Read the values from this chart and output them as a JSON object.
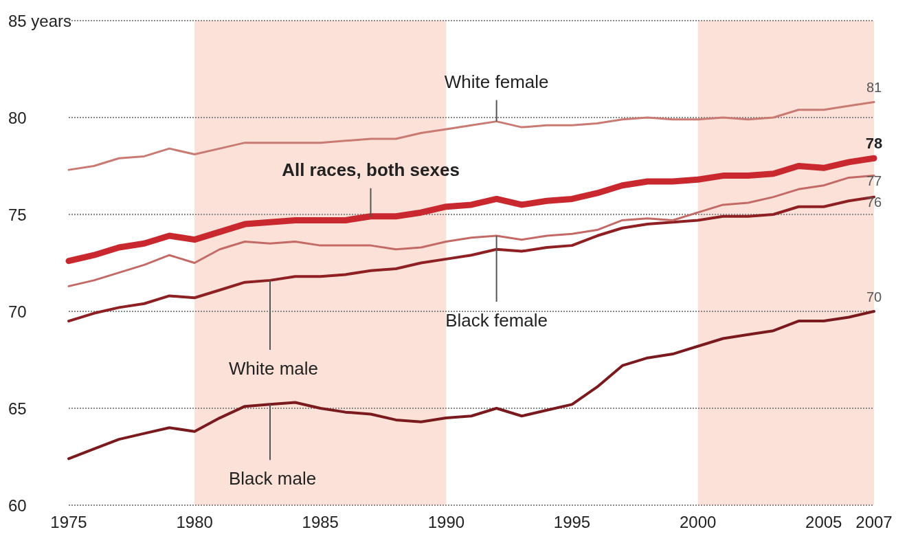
{
  "chart_data": {
    "type": "line",
    "x": [
      1975,
      1976,
      1977,
      1978,
      1979,
      1980,
      1981,
      1982,
      1983,
      1984,
      1985,
      1986,
      1987,
      1988,
      1989,
      1990,
      1991,
      1992,
      1993,
      1994,
      1995,
      1996,
      1997,
      1998,
      1999,
      2000,
      2001,
      2002,
      2003,
      2004,
      2005,
      2006,
      2007
    ],
    "series": [
      {
        "color": "#c8282e",
        "values": [
          72.6,
          72.9,
          73.3,
          73.5,
          73.9,
          73.7,
          74.1,
          74.5,
          74.6,
          74.7,
          74.7,
          74.7,
          74.9,
          74.9,
          75.1,
          75.4,
          75.5,
          75.8,
          75.5,
          75.7,
          75.8,
          76.1,
          76.5,
          76.7,
          76.7,
          76.8,
          77.0,
          77.0,
          77.1,
          77.5,
          77.4,
          77.7,
          77.9
        ],
        "value_labels": [
          null,
          null,
          null,
          null,
          null,
          null,
          null,
          null,
          null,
          null,
          null,
          null,
          null,
          null,
          null,
          null,
          null,
          null,
          null,
          null,
          null,
          null,
          null,
          null,
          null,
          null,
          null,
          null,
          null,
          null,
          null,
          null,
          "78"
        ]
      },
      {
        "color": "#c97a72",
        "values": [
          77.3,
          77.5,
          77.9,
          78.0,
          78.4,
          78.1,
          78.4,
          78.7,
          78.7,
          78.7,
          78.7,
          78.8,
          78.9,
          78.9,
          79.2,
          79.4,
          79.6,
          79.8,
          79.5,
          79.6,
          79.6,
          79.7,
          79.9,
          80.0,
          79.9,
          79.9,
          80.0,
          79.9,
          80.0,
          80.4,
          80.4,
          80.6,
          80.8
        ],
        "value_labels": [
          null,
          null,
          null,
          null,
          null,
          null,
          null,
          null,
          null,
          null,
          null,
          null,
          null,
          null,
          null,
          null,
          null,
          null,
          null,
          null,
          null,
          null,
          null,
          null,
          null,
          null,
          null,
          null,
          null,
          null,
          null,
          null,
          "81"
        ]
      },
      {
        "color": "#c46a66",
        "values": [
          71.3,
          71.6,
          72.0,
          72.4,
          72.9,
          72.5,
          73.2,
          73.6,
          73.5,
          73.6,
          73.4,
          73.4,
          73.4,
          73.2,
          73.3,
          73.6,
          73.8,
          73.9,
          73.7,
          73.9,
          74.0,
          74.2,
          74.7,
          74.8,
          74.7,
          75.1,
          75.5,
          75.6,
          75.9,
          76.3,
          76.5,
          76.9,
          77.0
        ],
        "value_labels": [
          null,
          null,
          null,
          null,
          null,
          null,
          null,
          null,
          null,
          null,
          null,
          null,
          null,
          null,
          null,
          null,
          null,
          null,
          null,
          null,
          null,
          null,
          null,
          null,
          null,
          null,
          null,
          null,
          null,
          null,
          null,
          null,
          "77"
        ]
      },
      {
        "color": "#8e1f22",
        "values": [
          69.5,
          69.9,
          70.2,
          70.4,
          70.8,
          70.7,
          71.1,
          71.5,
          71.6,
          71.8,
          71.8,
          71.9,
          72.1,
          72.2,
          72.5,
          72.7,
          72.9,
          73.2,
          73.1,
          73.3,
          73.4,
          73.9,
          74.3,
          74.5,
          74.6,
          74.7,
          74.9,
          74.9,
          75.0,
          75.4,
          75.4,
          75.7,
          75.9
        ],
        "value_labels": [
          null,
          null,
          null,
          null,
          null,
          null,
          null,
          null,
          null,
          null,
          null,
          null,
          null,
          null,
          null,
          null,
          null,
          null,
          null,
          null,
          null,
          null,
          null,
          null,
          null,
          null,
          null,
          null,
          null,
          null,
          null,
          null,
          "76"
        ]
      },
      {
        "color": "#7a1a1e",
        "values": [
          62.4,
          62.9,
          63.4,
          63.7,
          64.0,
          63.8,
          64.5,
          65.1,
          65.2,
          65.3,
          65.0,
          64.8,
          64.7,
          64.4,
          64.3,
          64.5,
          64.6,
          65.0,
          64.6,
          64.9,
          65.2,
          66.1,
          67.2,
          67.6,
          67.8,
          68.2,
          68.6,
          68.8,
          69.0,
          69.5,
          69.5,
          69.7,
          70.0
        ],
        "value_labels": [
          null,
          null,
          null,
          null,
          null,
          null,
          null,
          null,
          null,
          null,
          null,
          null,
          null,
          null,
          null,
          null,
          null,
          null,
          null,
          null,
          null,
          null,
          null,
          null,
          null,
          null,
          null,
          null,
          null,
          null,
          null,
          null,
          "70"
        ]
      }
    ],
    "annotations": [
      {
        "text": "All races, both sexes",
        "x": 1987,
        "y": 74.9
      },
      {
        "text": "White female",
        "x": 1992,
        "y": 79.8
      },
      {
        "text": "Black female",
        "x": 1992,
        "y": 73.9
      },
      {
        "text": "White male",
        "x": 1983,
        "y": 71.6
      },
      {
        "text": "Black male",
        "x": 1983,
        "y": 65.2
      }
    ],
    "bands": [
      {
        "axis": "x",
        "from": 1980,
        "to": 1990,
        "color": "#fbe1d7"
      },
      {
        "axis": "x",
        "from": 2000,
        "to": 2007,
        "color": "#fbe1d7"
      }
    ],
    "xlim": [
      1975,
      2007
    ],
    "xticks": [
      1975,
      1980,
      1985,
      1990,
      1995,
      2000,
      2005,
      2007
    ],
    "ylim": [
      60,
      85
    ],
    "yticks": [
      60,
      65,
      70,
      75,
      80,
      {
        "value": 85,
        "label": "85 years"
      }
    ],
    "grid": "y",
    "marker": "none",
    "line_style": "solid"
  }
}
